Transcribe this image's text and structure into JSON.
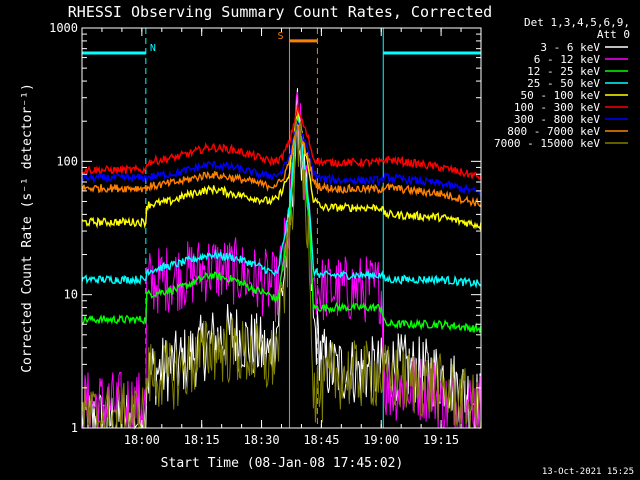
{
  "chart_data": {
    "type": "line",
    "title": "RHESSI Observing Summary Count Rates, Corrected",
    "xlabel": "Start Time (08-Jan-08 17:45:02)",
    "ylabel": "Corrected Count Rate (s⁻¹ detector⁻¹)",
    "x_unit": "minutes since 17:45:02",
    "xlim": [
      0,
      100
    ],
    "ylim": [
      1,
      1000
    ],
    "yscale": "log",
    "x_ticks": [
      {
        "t": 15,
        "label": "18:00"
      },
      {
        "t": 30,
        "label": "18:15"
      },
      {
        "t": 45,
        "label": "18:30"
      },
      {
        "t": 60,
        "label": "18:45"
      },
      {
        "t": 75,
        "label": "19:00"
      },
      {
        "t": 90,
        "label": "19:15"
      }
    ],
    "y_ticks": [
      {
        "v": 1,
        "label": "1"
      },
      {
        "v": 10,
        "label": "10"
      },
      {
        "v": 100,
        "label": "100"
      },
      {
        "v": 1000,
        "label": "1000"
      }
    ],
    "legend": {
      "header": [
        "Det 1,3,4,5,6,9,",
        "Att 0"
      ],
      "placement": "right"
    },
    "series": [
      {
        "name": "3 - 6 keV",
        "color": "#ffffff",
        "x": [
          0,
          16,
          16,
          24,
          33,
          38,
          43,
          47,
          49,
          52,
          54,
          57,
          58,
          60,
          62,
          68,
          75,
          76,
          90,
          100
        ],
        "y": [
          1.1,
          1.2,
          2.5,
          3,
          4.5,
          5,
          4.2,
          3.5,
          6,
          30,
          200,
          30,
          6,
          3.5,
          2.8,
          2.7,
          2.7,
          3,
          2.5,
          1.5
        ]
      },
      {
        "name": "6 - 12 keV",
        "color": "#ff00ff",
        "x": [
          0,
          16,
          16,
          20,
          26,
          32,
          38,
          43,
          47,
          49,
          52,
          54,
          57,
          58,
          60,
          65,
          70,
          75,
          76,
          88,
          90,
          100
        ],
        "y": [
          1.5,
          1.5,
          12,
          13,
          14,
          16,
          15,
          13,
          12,
          11,
          35,
          250,
          35,
          12,
          11,
          11,
          11,
          11,
          2,
          2,
          1.5,
          1.5
        ]
      },
      {
        "name": "12 - 25 keV",
        "color": "#00ff00",
        "x": [
          0,
          16,
          16,
          24,
          32,
          38,
          43,
          47,
          49,
          52,
          54,
          57,
          58,
          60,
          65,
          75,
          76,
          90,
          100
        ],
        "y": [
          6.5,
          6.5,
          10,
          11,
          14,
          13,
          11,
          10,
          9,
          35,
          250,
          35,
          8,
          8,
          8,
          8,
          6,
          6,
          5.5
        ]
      },
      {
        "name": "25 - 50 keV",
        "color": "#00ffff",
        "x": [
          0,
          16,
          16,
          24,
          32,
          38,
          43,
          47,
          49,
          52,
          54,
          57,
          58,
          60,
          65,
          75,
          76,
          90,
          100
        ],
        "y": [
          13,
          13,
          15,
          17,
          20,
          19,
          17,
          15,
          14,
          45,
          250,
          45,
          15,
          14,
          14,
          14,
          13,
          13,
          12
        ]
      },
      {
        "name": "50 - 100 keV",
        "color": "#ffff00",
        "x": [
          0,
          16,
          16,
          22,
          28,
          33,
          38,
          43,
          47,
          49,
          52,
          54,
          57,
          58,
          60,
          65,
          75,
          76,
          90,
          100
        ],
        "y": [
          35,
          35,
          47,
          50,
          58,
          62,
          57,
          53,
          50,
          52,
          80,
          250,
          80,
          52,
          45,
          45,
          45,
          40,
          38,
          33
        ]
      },
      {
        "name": "100 - 300 keV",
        "color": "#ff0000",
        "x": [
          0,
          16,
          16,
          24,
          32,
          38,
          43,
          46,
          48,
          50,
          52,
          54,
          57,
          58,
          60,
          65,
          75,
          76,
          90,
          100
        ],
        "y": [
          86,
          86,
          98,
          108,
          128,
          122,
          110,
          102,
          100,
          105,
          140,
          250,
          140,
          105,
          98,
          98,
          98,
          104,
          90,
          76
        ]
      },
      {
        "name": "300 - 800 keV",
        "color": "#0000ff",
        "x": [
          0,
          16,
          16,
          24,
          32,
          38,
          43,
          46,
          48,
          50,
          52,
          54,
          57,
          58,
          60,
          65,
          75,
          76,
          90,
          100
        ],
        "y": [
          75,
          75,
          76,
          82,
          95,
          90,
          82,
          78,
          78,
          82,
          110,
          200,
          110,
          82,
          74,
          72,
          72,
          76,
          68,
          58
        ]
      },
      {
        "name": "800 - 7000 keV",
        "color": "#ff8000",
        "x": [
          0,
          16,
          16,
          24,
          32,
          38,
          43,
          46,
          48,
          50,
          52,
          54,
          57,
          58,
          60,
          65,
          75,
          76,
          90,
          100
        ],
        "y": [
          63,
          63,
          64,
          70,
          80,
          75,
          70,
          66,
          66,
          70,
          100,
          180,
          100,
          70,
          64,
          62,
          62,
          64,
          57,
          48
        ]
      },
      {
        "name": "7000 - 15000 keV",
        "color": "#808000",
        "x": [
          0,
          16,
          16,
          24,
          32,
          38,
          43,
          47,
          49,
          52,
          54,
          57,
          58,
          60,
          62,
          68,
          75,
          76,
          90,
          100
        ],
        "y": [
          1.2,
          1.2,
          2.5,
          2.5,
          4,
          3.8,
          3.5,
          3,
          4,
          25,
          180,
          25,
          2,
          1.8,
          2.5,
          2.5,
          2.5,
          2.4,
          2,
          1.3
        ]
      }
    ],
    "markers": [
      {
        "label": "N",
        "color": "#00ffff",
        "x_start": 0,
        "x_end": 16,
        "y": 650
      },
      {
        "label": "N",
        "color": "#00ffff",
        "x_start": 75.5,
        "x_end": 100,
        "y": 650
      },
      {
        "label": "S",
        "color": "#ff8000",
        "x_start": 52,
        "x_end": 59,
        "y": 800
      }
    ],
    "vlines": [
      {
        "x": 16,
        "color": "#00ffff",
        "style": "dashed"
      },
      {
        "x": 75.5,
        "color": "#00ffff",
        "style": "solid"
      },
      {
        "x": 100,
        "color": "#00ffff",
        "style": "dashed"
      },
      {
        "x": 52,
        "color": "#ff8000",
        "style": "solid"
      },
      {
        "x": 59,
        "color": "#ff8000",
        "style": "dashed"
      }
    ]
  },
  "timestamp": "13-Oct-2021 15:25"
}
